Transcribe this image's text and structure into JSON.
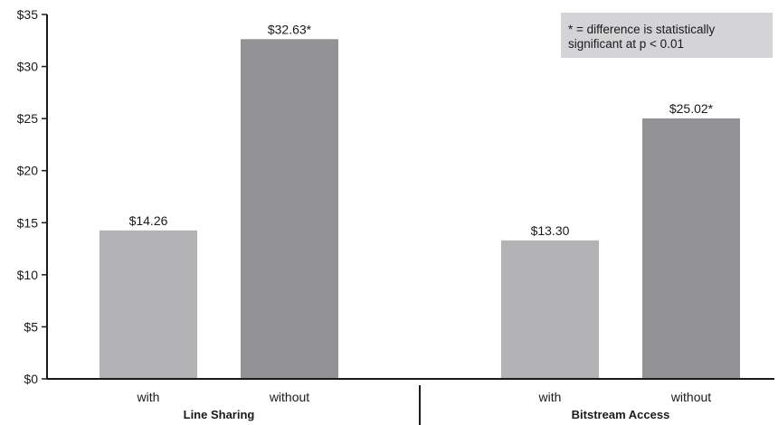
{
  "chart_data": {
    "type": "bar",
    "title": "",
    "xlabel": "",
    "ylabel": "",
    "ylim": [
      0,
      35
    ],
    "yticks": [
      "$0",
      "$5",
      "$10",
      "$15",
      "$20",
      "$25",
      "$30",
      "$35"
    ],
    "groups": [
      {
        "label": "Line Sharing",
        "bars": [
          {
            "category": "with",
            "value": 14.26,
            "label": "$14.26",
            "color": "#b3b3b6"
          },
          {
            "category": "without",
            "value": 32.63,
            "label": "$32.63*",
            "color": "#939396"
          }
        ]
      },
      {
        "label": "Bitstream Access",
        "bars": [
          {
            "category": "with",
            "value": 13.3,
            "label": "$13.30",
            "color": "#b3b3b6"
          },
          {
            "category": "without",
            "value": 25.02,
            "label": "$25.02*",
            "color": "#939396"
          }
        ]
      }
    ],
    "note": {
      "line1": "* = difference is statistically",
      "line2": "significant at p < 0.01",
      "background": "#d4d4d6"
    },
    "grid": false,
    "legend": "none"
  }
}
